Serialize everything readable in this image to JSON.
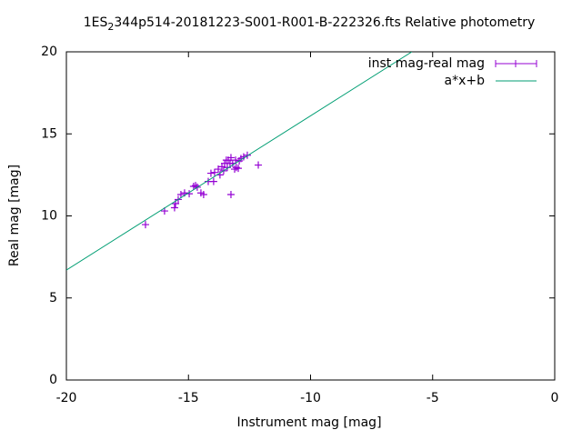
{
  "chart_data": {
    "type": "scatter",
    "title_parts": [
      "1ES",
      "2",
      "344p514-20181223-S001-R001-B-222326.fts Relative photometry"
    ],
    "x_label": "Instrument mag [mag]",
    "y_label": "Real mag [mag]",
    "xlim": [
      -20,
      0
    ],
    "ylim": [
      0,
      20
    ],
    "xticks": [
      -20,
      -15,
      -10,
      -5,
      0
    ],
    "yticks": [
      0,
      5,
      10,
      15,
      20
    ],
    "legend": "top-right",
    "series": [
      {
        "name": "inst mag-real mag",
        "color": "#9400d3",
        "kind": "points",
        "x": [
          -16.76,
          -15.98,
          -15.57,
          -15.53,
          -15.42,
          -15.31,
          -15.16,
          -14.97,
          -14.79,
          -14.71,
          -14.64,
          -14.49,
          -14.38,
          -14.19,
          -14.08,
          -13.97,
          -13.93,
          -13.78,
          -13.71,
          -13.63,
          -13.56,
          -13.52,
          -13.45,
          -13.41,
          -13.37,
          -13.3,
          -13.26,
          -13.26,
          -13.19,
          -13.11,
          -13.07,
          -13.04,
          -12.92,
          -12.85,
          -12.74,
          -12.59,
          -12.14,
          -12.96
        ],
        "values": [
          9.47,
          10.3,
          10.5,
          10.75,
          11.0,
          11.3,
          11.4,
          11.35,
          11.8,
          11.85,
          11.75,
          11.4,
          11.3,
          12.1,
          12.6,
          12.1,
          12.65,
          12.85,
          12.5,
          13.0,
          12.75,
          13.2,
          13.4,
          12.95,
          13.4,
          13.2,
          13.55,
          11.3,
          13.2,
          12.85,
          13.4,
          12.95,
          13.35,
          13.5,
          13.6,
          13.7,
          13.1,
          12.9
        ]
      },
      {
        "name": "a*x+b",
        "color": "#009e73",
        "kind": "line",
        "x": [
          -20,
          -5.85
        ],
        "values": [
          6.7,
          20
        ]
      }
    ]
  }
}
